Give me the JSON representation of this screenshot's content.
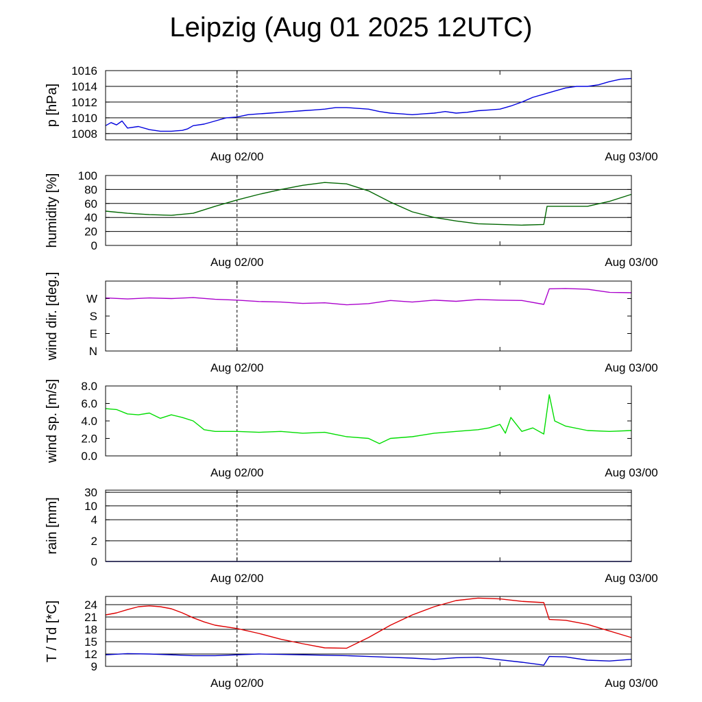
{
  "title": "Leipzig (Aug 01 2025 12UTC)",
  "x_ticks": [
    "Aug 02/00",
    "Aug 03/00"
  ],
  "chart_data": [
    {
      "type": "line",
      "ylabel": "p [hPa]",
      "ylim": [
        1007.2,
        1016.0
      ],
      "yticks": [
        1008,
        1010,
        1012,
        1014,
        1016
      ],
      "ytick_labels": [
        "1008",
        "1010",
        "1012",
        "1014",
        "1016"
      ],
      "grid": true,
      "series": [
        {
          "color": "#0000dd",
          "x": [
            0,
            0.5,
            1,
            1.5,
            2,
            3,
            4,
            5,
            6,
            7,
            7.5,
            8,
            9,
            10,
            11,
            12,
            13,
            14,
            15,
            16,
            17,
            18,
            19,
            20,
            21,
            22,
            23,
            24,
            25,
            26,
            27,
            28,
            29,
            30,
            31,
            32,
            33,
            34,
            35,
            36,
            37,
            38,
            39,
            40,
            41,
            42,
            43,
            44,
            45,
            46,
            47,
            48
          ],
          "y": [
            1009.0,
            1009.4,
            1009.1,
            1009.6,
            1008.7,
            1008.9,
            1008.5,
            1008.3,
            1008.3,
            1008.4,
            1008.6,
            1009.0,
            1009.2,
            1009.6,
            1010.0,
            1010.1,
            1010.4,
            1010.5,
            1010.6,
            1010.7,
            1010.8,
            1010.9,
            1011.0,
            1011.1,
            1011.3,
            1011.3,
            1011.2,
            1011.1,
            1010.8,
            1010.6,
            1010.5,
            1010.4,
            1010.5,
            1010.6,
            1010.8,
            1010.6,
            1010.7,
            1010.9,
            1011.0,
            1011.1,
            1011.5,
            1012.0,
            1012.6,
            1013.0,
            1013.4,
            1013.8,
            1014.0,
            1014.0,
            1014.2,
            1014.6,
            1014.9,
            1015.0
          ]
        }
      ]
    },
    {
      "type": "line",
      "ylabel": "humidity [%]",
      "ylim": [
        0,
        100
      ],
      "yticks": [
        0,
        20,
        40,
        60,
        80,
        100
      ],
      "ytick_labels": [
        "0",
        "20",
        "40",
        "60",
        "80",
        "100"
      ],
      "grid": true,
      "series": [
        {
          "color": "#006600",
          "x": [
            0,
            2,
            4,
            6,
            8,
            10,
            12,
            14,
            16,
            18,
            20,
            22,
            24,
            26,
            28,
            30,
            32,
            34,
            36,
            38,
            40,
            40.3,
            42,
            44,
            46,
            48
          ],
          "y": [
            49,
            46,
            44,
            43,
            46,
            56,
            65,
            73,
            80,
            86,
            90,
            88,
            78,
            62,
            48,
            40,
            35,
            31,
            30,
            29,
            30,
            56,
            56,
            56,
            63,
            73
          ]
        }
      ]
    },
    {
      "type": "line",
      "ylabel": "wind dir. [deg.]",
      "ylim": [
        0,
        360
      ],
      "yticks": [
        0,
        90,
        180,
        270
      ],
      "ytick_labels": [
        "N",
        "E",
        "S",
        "W"
      ],
      "grid": false,
      "series": [
        {
          "color": "#aa00cc",
          "x": [
            0,
            2,
            4,
            6,
            8,
            10,
            12,
            14,
            16,
            18,
            20,
            22,
            24,
            26,
            28,
            30,
            32,
            34,
            36,
            38,
            40,
            40.5,
            42,
            44,
            46,
            48
          ],
          "y": [
            273,
            268,
            273,
            270,
            275,
            266,
            262,
            255,
            252,
            245,
            248,
            238,
            244,
            260,
            252,
            262,
            256,
            265,
            262,
            260,
            240,
            320,
            322,
            318,
            302,
            300
          ]
        }
      ]
    },
    {
      "type": "line",
      "ylabel": "wind sp. [m/s]",
      "ylim": [
        0,
        8.0
      ],
      "yticks": [
        0,
        2,
        4,
        6,
        8
      ],
      "ytick_labels": [
        "0.0",
        "2.0",
        "4.0",
        "6.0",
        "8.0"
      ],
      "grid": false,
      "series": [
        {
          "color": "#00dd00",
          "x": [
            0,
            1,
            2,
            3,
            4,
            5,
            6,
            7,
            8,
            9,
            10,
            12,
            14,
            16,
            18,
            20,
            22,
            24,
            25,
            26,
            28,
            30,
            32,
            34,
            35,
            36,
            36.5,
            37,
            38,
            39,
            40,
            40.5,
            41,
            42,
            44,
            46,
            48
          ],
          "y": [
            5.4,
            5.3,
            4.8,
            4.7,
            4.9,
            4.3,
            4.7,
            4.4,
            4.0,
            3.0,
            2.8,
            2.8,
            2.7,
            2.8,
            2.6,
            2.7,
            2.2,
            2.0,
            1.4,
            2.0,
            2.2,
            2.6,
            2.8,
            3.0,
            3.2,
            3.6,
            2.6,
            4.4,
            2.8,
            3.2,
            2.5,
            7.0,
            4.0,
            3.4,
            2.9,
            2.8,
            2.9
          ]
        }
      ]
    },
    {
      "type": "line",
      "ylabel": "rain [mm]",
      "ylim": [
        0,
        30
      ],
      "yticks": [
        0,
        2,
        4,
        10,
        30
      ],
      "ytick_labels": [
        "0",
        "2",
        "4",
        "10",
        "30"
      ],
      "grid": true,
      "scale": "custom-nonlinear",
      "series": [
        {
          "color": "#000099",
          "x": [
            0,
            48
          ],
          "y": [
            0,
            0
          ]
        }
      ]
    },
    {
      "type": "line",
      "ylabel": "T / Td [*C]",
      "ylim": [
        9,
        26
      ],
      "yticks": [
        9,
        12,
        15,
        18,
        21,
        24
      ],
      "ytick_labels": [
        "9",
        "12",
        "15",
        "18",
        "21",
        "24"
      ],
      "grid": true,
      "series": [
        {
          "color": "#dd0000",
          "x": [
            0,
            1,
            2,
            3,
            4,
            5,
            6,
            7,
            8,
            9,
            10,
            12,
            14,
            16,
            18,
            20,
            22,
            24,
            26,
            28,
            30,
            32,
            34,
            36,
            38,
            40,
            40.5,
            42,
            44,
            46,
            48
          ],
          "y": [
            21.5,
            22.0,
            22.8,
            23.5,
            23.7,
            23.5,
            23.0,
            22.0,
            20.8,
            19.8,
            19.0,
            18.2,
            17.0,
            15.6,
            14.5,
            13.5,
            13.4,
            16.0,
            19.0,
            21.5,
            23.5,
            25.0,
            25.6,
            25.4,
            24.8,
            24.5,
            20.4,
            20.2,
            19.2,
            17.6,
            16.0
          ]
        },
        {
          "color": "#0000cc",
          "x": [
            0,
            2,
            4,
            6,
            8,
            10,
            12,
            14,
            16,
            18,
            20,
            22,
            24,
            26,
            28,
            30,
            32,
            34,
            36,
            38,
            40,
            40.5,
            42,
            44,
            46,
            48
          ],
          "y": [
            11.8,
            12.1,
            12.0,
            11.8,
            11.6,
            11.6,
            11.8,
            12.0,
            11.9,
            11.8,
            11.7,
            11.6,
            11.4,
            11.2,
            11.0,
            10.7,
            11.1,
            11.2,
            10.6,
            10.0,
            9.3,
            11.4,
            11.3,
            10.5,
            10.3,
            10.7
          ]
        }
      ]
    }
  ]
}
